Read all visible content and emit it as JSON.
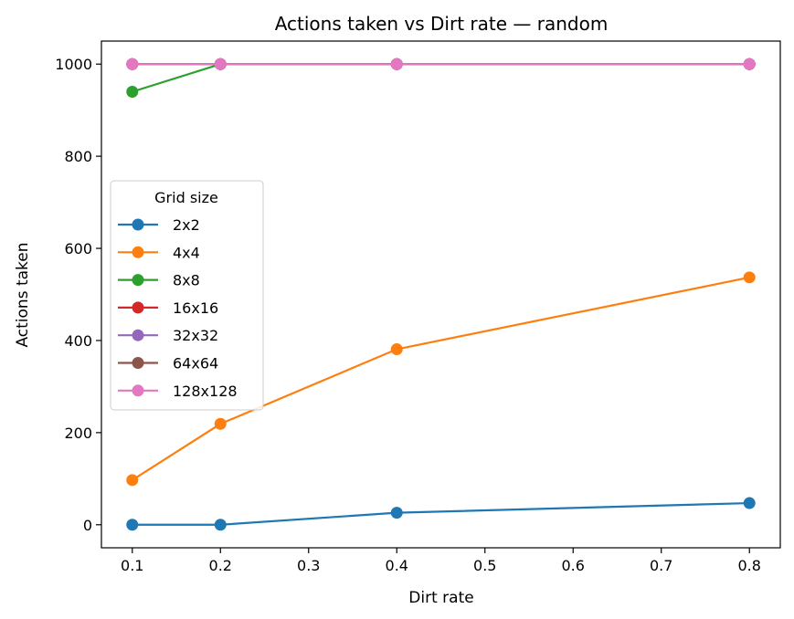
{
  "chart_data": {
    "type": "line",
    "title": "Actions taken vs Dirt rate — random",
    "xlabel": "Dirt rate",
    "ylabel": "Actions taken",
    "xlim": [
      0.065,
      0.835
    ],
    "ylim": [
      -50,
      1050
    ],
    "xticks": [
      0.1,
      0.2,
      0.3,
      0.4,
      0.5,
      0.6,
      0.7,
      0.8
    ],
    "xtick_labels": [
      "0.1",
      "0.2",
      "0.3",
      "0.4",
      "0.5",
      "0.6",
      "0.7",
      "0.8"
    ],
    "yticks": [
      0,
      200,
      400,
      600,
      800,
      1000
    ],
    "ytick_labels": [
      "0",
      "200",
      "400",
      "600",
      "800",
      "1000"
    ],
    "grid": false,
    "legend": {
      "title": "Grid size",
      "placement": "center-left"
    },
    "x": [
      0.1,
      0.2,
      0.4,
      0.8
    ],
    "series": [
      {
        "name": "2x2",
        "color": "#1f77b4",
        "values": [
          0,
          0,
          26,
          47
        ]
      },
      {
        "name": "4x4",
        "color": "#ff7f0e",
        "values": [
          97,
          219,
          381,
          537
        ]
      },
      {
        "name": "8x8",
        "color": "#2ca02c",
        "values": [
          940,
          1000,
          1000,
          1000
        ]
      },
      {
        "name": "16x16",
        "color": "#d62728",
        "values": [
          1000,
          1000,
          1000,
          1000
        ]
      },
      {
        "name": "32x32",
        "color": "#9467bd",
        "values": [
          1000,
          1000,
          1000,
          1000
        ]
      },
      {
        "name": "64x64",
        "color": "#8c564b",
        "values": [
          1000,
          1000,
          1000,
          1000
        ]
      },
      {
        "name": "128x128",
        "color": "#e377c2",
        "values": [
          1000,
          1000,
          1000,
          1000
        ]
      }
    ]
  }
}
